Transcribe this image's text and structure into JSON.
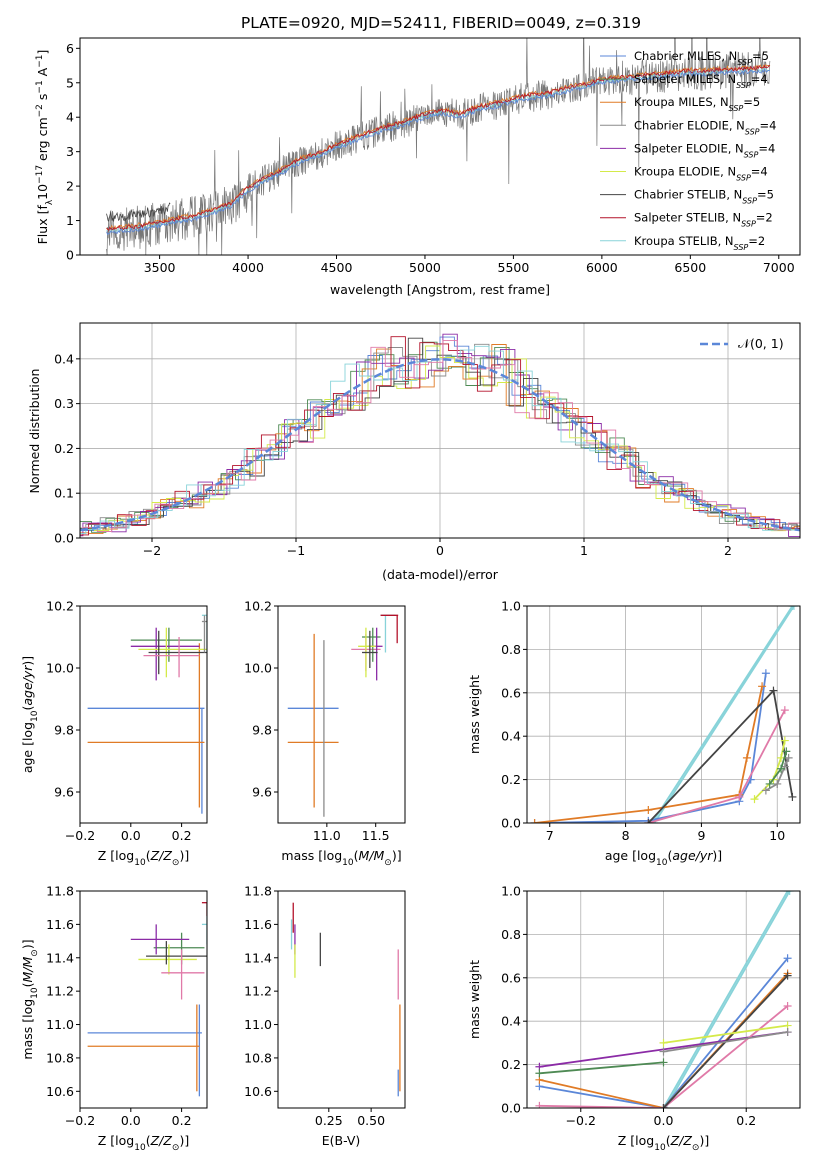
{
  "colors": {
    "Chabrier MILES": "#5b87d8",
    "Salpeter MILES": "#4e8a54",
    "Kroupa MILES": "#e07b26",
    "Chabrier ELODIE": "#8c8c8c",
    "Salpeter ELODIE": "#8b2ba6",
    "Kroupa ELODIE": "#d4ea4a",
    "Chabrier STELIB": "#444444",
    "Salpeter STELIB": "#b3122a",
    "Kroupa STELIB": "#88d3d9",
    "extra_pink": "#e07aa8",
    "gauss": "#5b87d8"
  },
  "title": "PLATE=0920, MJD=52411, FIBERID=0049, z=0.319",
  "chart_data": [
    {
      "id": "spectrum",
      "type": "line",
      "xlabel": "wavelength [Angstrom, rest frame]",
      "ylabel_parts": [
        "Flux [f",
        "λ",
        "10",
        "−17",
        " erg cm",
        "−2",
        " s",
        "−1",
        " A",
        "−1",
        "]"
      ],
      "xlim": [
        3050,
        7120
      ],
      "ylim": [
        0,
        6.3
      ],
      "xticks": [
        3500,
        4000,
        4500,
        5000,
        5500,
        6000,
        6500,
        7000
      ],
      "yticks": [
        0,
        1,
        2,
        3,
        4,
        5,
        6
      ],
      "continuum": {
        "x": [
          3200,
          3300,
          3400,
          3500,
          3600,
          3700,
          3800,
          3900,
          4000,
          4100,
          4200,
          4300,
          4400,
          4500,
          4600,
          4700,
          4800,
          4900,
          5000,
          5100,
          5200,
          5300,
          5400,
          5500,
          5600,
          5700,
          5800,
          5900,
          6000,
          6100,
          6200,
          6300,
          6400,
          6500,
          6600,
          6700,
          6800,
          6950
        ],
        "y": [
          0.7,
          0.75,
          0.8,
          0.9,
          1.0,
          1.1,
          1.25,
          1.45,
          1.9,
          2.2,
          2.45,
          2.75,
          2.9,
          3.15,
          3.35,
          3.55,
          3.7,
          3.85,
          4.05,
          4.15,
          4.05,
          4.25,
          4.35,
          4.5,
          4.6,
          4.65,
          4.8,
          4.9,
          5.05,
          5.1,
          5.15,
          5.2,
          5.25,
          5.3,
          5.3,
          5.35,
          5.35,
          5.4
        ]
      },
      "legend": [
        {
          "name": "Chabrier MILES",
          "n": 5
        },
        {
          "name": "Salpeter MILES",
          "n": 4
        },
        {
          "name": "Kroupa MILES",
          "n": 5
        },
        {
          "name": "Chabrier ELODIE",
          "n": 4
        },
        {
          "name": "Salpeter ELODIE",
          "n": 4
        },
        {
          "name": "Kroupa ELODIE",
          "n": 4
        },
        {
          "name": "Chabrier STELIB",
          "n": 5
        },
        {
          "name": "Salpeter STELIB",
          "n": 2
        },
        {
          "name": "Kroupa STELIB",
          "n": 2
        }
      ]
    },
    {
      "id": "residuals",
      "type": "area",
      "xlabel": "(data-model)/error",
      "ylabel": "Normed distribution",
      "xlim": [
        -2.5,
        2.5
      ],
      "ylim": [
        0,
        0.48
      ],
      "xticks": [
        -2,
        -1,
        0,
        1,
        2
      ],
      "yticks": [
        0.0,
        0.1,
        0.2,
        0.3,
        0.4
      ],
      "grid": true,
      "gauss_label": "𝒩(0, 1)",
      "bin_width": 0.1
    },
    {
      "id": "z_age",
      "type": "scatter",
      "xlabel": "Z [log10(Z/Z⊙)]",
      "ylabel": "age  [log10(age/yr)]",
      "xlim": [
        -0.2,
        0.3
      ],
      "ylim": [
        9.5,
        10.2
      ],
      "xticks": [
        -0.2,
        0.0,
        0.2
      ],
      "yticks": [
        9.6,
        9.8,
        10.0,
        10.2
      ],
      "points": [
        {
          "s": "Chabrier MILES",
          "x": 0.28,
          "y": 9.87,
          "xl": -0.17,
          "xh": 0.29,
          "yl": 9.53,
          "yh": 9.87
        },
        {
          "s": "Kroupa MILES",
          "x": 0.27,
          "y": 9.76,
          "xl": -0.17,
          "xh": 0.29,
          "yl": 9.55,
          "yh": 10.08
        },
        {
          "s": "Salpeter MILES",
          "x": 0.15,
          "y": 10.09,
          "xl": 0.0,
          "xh": 0.28,
          "yl": 10.02,
          "yh": 10.13
        },
        {
          "s": "Salpeter ELODIE",
          "x": 0.1,
          "y": 10.07,
          "xl": 0.0,
          "xh": 0.27,
          "yl": 9.96,
          "yh": 10.13
        },
        {
          "s": "Kroupa ELODIE",
          "x": 0.14,
          "y": 10.06,
          "xl": 0.03,
          "xh": 0.3,
          "yl": 9.97,
          "yh": 10.13
        },
        {
          "s": "Chabrier STELIB",
          "x": 0.11,
          "y": 10.05,
          "xl": 0.07,
          "xh": 0.3,
          "yl": 9.98,
          "yh": 10.12
        },
        {
          "s": "Kroupa STELIB",
          "x": 0.3,
          "y": 10.17,
          "xl": 0.28,
          "xh": 0.3,
          "yl": 10.05,
          "yh": 10.17
        },
        {
          "s": "Chabrier ELODIE",
          "x": 0.29,
          "y": 10.15,
          "xl": 0.28,
          "xh": 0.3,
          "yl": 10.05,
          "yh": 10.17
        },
        {
          "s": "extra_pink",
          "x": 0.19,
          "y": 10.04,
          "xl": 0.05,
          "xh": 0.27,
          "yl": 9.97,
          "yh": 10.1
        }
      ]
    },
    {
      "id": "mass_age",
      "type": "scatter",
      "xlabel": "mass [log10(M/M⊙)]",
      "ylabel": "",
      "xlim": [
        10.5,
        11.8
      ],
      "ylim": [
        9.5,
        10.2
      ],
      "xticks": [
        11.0,
        11.5
      ],
      "yticks": [
        9.6,
        9.8,
        10.0,
        10.2
      ],
      "points": [
        {
          "s": "Chabrier MILES",
          "x": 10.95,
          "y": 9.87,
          "xl": 10.6,
          "xh": 11.12,
          "yl": 9.87,
          "yh": 9.87
        },
        {
          "s": "Kroupa MILES",
          "x": 10.87,
          "y": 9.76,
          "xl": 10.6,
          "xh": 11.12,
          "yl": 9.55,
          "yh": 10.11
        },
        {
          "s": "Chabrier ELODIE",
          "x": 10.97,
          "y": 9.8,
          "xl": 10.97,
          "xh": 10.97,
          "yl": 9.52,
          "yh": 10.09
        },
        {
          "s": "extra_pink",
          "x": 11.4,
          "y": 10.06,
          "xl": 11.25,
          "xh": 11.55,
          "yl": 9.99,
          "yh": 10.11
        },
        {
          "s": "Salpeter MILES",
          "x": 11.47,
          "y": 10.1,
          "xl": 11.36,
          "xh": 11.55,
          "yl": 10.02,
          "yh": 10.13
        },
        {
          "s": "Salpeter ELODIE",
          "x": 11.51,
          "y": 10.07,
          "xl": 11.42,
          "xh": 11.57,
          "yl": 9.96,
          "yh": 10.13
        },
        {
          "s": "Kroupa ELODIE",
          "x": 11.4,
          "y": 10.07,
          "xl": 11.32,
          "xh": 11.5,
          "yl": 9.97,
          "yh": 10.13
        },
        {
          "s": "Chabrier STELIB",
          "x": 11.44,
          "y": 10.05,
          "xl": 11.36,
          "xh": 11.52,
          "yl": 10.0,
          "yh": 10.12
        },
        {
          "s": "Kroupa STELIB",
          "x": 11.6,
          "y": 10.17,
          "xl": 11.55,
          "xh": 11.7,
          "yl": 10.05,
          "yh": 10.17
        },
        {
          "s": "Salpeter STELIB",
          "x": 11.72,
          "y": 10.17,
          "xl": 11.55,
          "xh": 11.73,
          "yl": 10.08,
          "yh": 10.17
        }
      ]
    },
    {
      "id": "age_weight",
      "type": "line",
      "xlabel": "age  [log10(age/yr)]",
      "ylabel": "mass weight",
      "xlim": [
        6.7,
        10.3
      ],
      "ylim": [
        0,
        1.0
      ],
      "xticks": [
        7,
        8,
        9,
        10
      ],
      "yticks": [
        0.0,
        0.2,
        0.4,
        0.6,
        0.8,
        1.0
      ],
      "grid": true,
      "series": [
        {
          "s": "Kroupa STELIB",
          "x": [
            8.35,
            10.2
          ],
          "y": [
            0.0,
            1.0
          ]
        },
        {
          "s": "Kroupa STELIB",
          "x": [
            8.38,
            10.22
          ],
          "y": [
            0.0,
            1.0
          ]
        },
        {
          "s": "Chabrier MILES",
          "x": [
            6.8,
            8.3,
            9.5,
            9.65,
            9.85
          ],
          "y": [
            0.0,
            0.01,
            0.1,
            0.2,
            0.69
          ]
        },
        {
          "s": "Kroupa MILES",
          "x": [
            6.8,
            8.3,
            9.5,
            9.6,
            9.8
          ],
          "y": [
            0.0,
            0.06,
            0.13,
            0.3,
            0.63
          ]
        },
        {
          "s": "extra_pink",
          "x": [
            8.3,
            9.5,
            10.1
          ],
          "y": [
            0.0,
            0.12,
            0.52
          ]
        },
        {
          "s": "Chabrier STELIB",
          "x": [
            8.3,
            9.95,
            10.2
          ],
          "y": [
            0.0,
            0.61,
            0.12
          ]
        },
        {
          "s": "Kroupa ELODIE",
          "x": [
            9.7,
            9.95,
            10.05,
            10.1
          ],
          "y": [
            0.11,
            0.2,
            0.3,
            0.38
          ]
        },
        {
          "s": "Chabrier ELODIE",
          "x": [
            9.85,
            10.0,
            10.1,
            10.15
          ],
          "y": [
            0.15,
            0.18,
            0.26,
            0.3
          ]
        },
        {
          "s": "Salpeter MILES",
          "x": [
            9.9,
            10.05,
            10.12
          ],
          "y": [
            0.18,
            0.25,
            0.33
          ]
        }
      ]
    },
    {
      "id": "z_mass",
      "type": "scatter",
      "xlabel": "Z [log10(Z/Z⊙)]",
      "ylabel": "mass [log10(M/M⊙)]",
      "xlim": [
        -0.2,
        0.3
      ],
      "ylim": [
        10.5,
        11.8
      ],
      "xticks": [
        -0.2,
        0.0,
        0.2
      ],
      "yticks": [
        10.6,
        10.8,
        11.0,
        11.2,
        11.4,
        11.6,
        11.8
      ],
      "points": [
        {
          "s": "Chabrier MILES",
          "x": 0.27,
          "y": 10.95,
          "xl": -0.17,
          "xh": 0.28,
          "yl": 10.57,
          "yh": 11.12
        },
        {
          "s": "Kroupa MILES",
          "x": 0.26,
          "y": 10.87,
          "xl": -0.17,
          "xh": 0.27,
          "yl": 10.6,
          "yh": 11.12
        },
        {
          "s": "Salpeter MILES",
          "x": 0.2,
          "y": 11.46,
          "xl": 0.09,
          "xh": 0.29,
          "yl": 11.36,
          "yh": 11.55
        },
        {
          "s": "Salpeter ELODIE",
          "x": 0.1,
          "y": 11.51,
          "xl": 0.0,
          "xh": 0.23,
          "yl": 11.42,
          "yh": 11.6
        },
        {
          "s": "Kroupa ELODIE",
          "x": 0.15,
          "y": 11.39,
          "xl": 0.03,
          "xh": 0.26,
          "yl": 11.3,
          "yh": 11.48
        },
        {
          "s": "Chabrier STELIB",
          "x": 0.14,
          "y": 11.41,
          "xl": 0.06,
          "xh": 0.3,
          "yl": 11.36,
          "yh": 11.5
        },
        {
          "s": "extra_pink",
          "x": 0.2,
          "y": 11.31,
          "xl": 0.12,
          "xh": 0.29,
          "yl": 11.15,
          "yh": 11.45
        },
        {
          "s": "Kroupa STELIB",
          "x": 0.3,
          "y": 11.6,
          "xl": 0.28,
          "xh": 0.3,
          "yl": 11.48,
          "yh": 11.65
        },
        {
          "s": "Salpeter STELIB",
          "x": 0.3,
          "y": 11.73,
          "xl": 0.28,
          "xh": 0.3,
          "yl": 11.65,
          "yh": 11.73
        }
      ]
    },
    {
      "id": "ebv_mass",
      "type": "scatter",
      "xlabel": "E(B-V)",
      "ylabel": "",
      "xlim": [
        -0.05,
        0.7
      ],
      "ylim": [
        10.5,
        11.8
      ],
      "xticks": [
        0.25,
        0.5
      ],
      "yticks": [
        10.6,
        10.8,
        11.0,
        11.2,
        11.4,
        11.6,
        11.8
      ],
      "points": [
        {
          "s": "Salpeter STELIB",
          "x": 0.04,
          "y": 11.65,
          "yl": 11.55,
          "yh": 11.73
        },
        {
          "s": "Kroupa STELIB",
          "x": 0.03,
          "y": 11.55,
          "yl": 11.45,
          "yh": 11.63
        },
        {
          "s": "Salpeter ELODIE",
          "x": 0.05,
          "y": 11.5,
          "yl": 11.42,
          "yh": 11.6
        },
        {
          "s": "Kroupa ELODIE",
          "x": 0.05,
          "y": 11.38,
          "yl": 11.28,
          "yh": 11.48
        },
        {
          "s": "Chabrier STELIB",
          "x": 0.2,
          "y": 11.45,
          "yl": 11.35,
          "yh": 11.55
        },
        {
          "s": "extra_pink",
          "x": 0.66,
          "y": 11.31,
          "yl": 11.15,
          "yh": 11.45
        },
        {
          "s": "Kroupa MILES",
          "x": 0.67,
          "y": 10.87,
          "yl": 10.6,
          "yh": 11.12
        },
        {
          "s": "Chabrier MILES",
          "x": 0.66,
          "y": 10.65,
          "yl": 10.57,
          "yh": 10.73
        }
      ]
    },
    {
      "id": "z_weight",
      "type": "line",
      "xlabel": "Z [log10(Z/Z⊙)]",
      "ylabel": "mass weight",
      "xlim": [
        -0.33,
        0.33
      ],
      "ylim": [
        0,
        1.0
      ],
      "xticks": [
        -0.2,
        0.0,
        0.2
      ],
      "yticks": [
        0.0,
        0.2,
        0.4,
        0.6,
        0.8,
        1.0
      ],
      "grid": true,
      "series": [
        {
          "s": "Kroupa STELIB",
          "x": [
            0.0,
            0.3
          ],
          "y": [
            0.0,
            1.0
          ]
        },
        {
          "s": "Kroupa STELIB",
          "x": [
            0.005,
            0.305
          ],
          "y": [
            0.0,
            1.0
          ]
        },
        {
          "s": "Chabrier MILES",
          "x": [
            -0.3,
            0.0,
            0.3
          ],
          "y": [
            0.1,
            0.0,
            0.69
          ]
        },
        {
          "s": "Kroupa MILES",
          "x": [
            -0.3,
            0.0,
            0.3
          ],
          "y": [
            0.13,
            0.0,
            0.62
          ]
        },
        {
          "s": "Salpeter ELODIE",
          "x": [
            -0.3,
            0.3
          ],
          "y": [
            0.19,
            0.35
          ]
        },
        {
          "s": "extra_pink",
          "x": [
            -0.3,
            0.0,
            0.3
          ],
          "y": [
            0.01,
            0.0,
            0.47
          ]
        },
        {
          "s": "Chabrier STELIB",
          "x": [
            0.0,
            0.3
          ],
          "y": [
            0.0,
            0.61
          ]
        },
        {
          "s": "Kroupa ELODIE",
          "x": [
            0.0,
            0.3
          ],
          "y": [
            0.3,
            0.38
          ]
        },
        {
          "s": "Chabrier ELODIE",
          "x": [
            0.0,
            0.3
          ],
          "y": [
            0.26,
            0.35
          ]
        },
        {
          "s": "Salpeter MILES",
          "x": [
            -0.3,
            0.0
          ],
          "y": [
            0.16,
            0.21
          ]
        }
      ]
    }
  ]
}
